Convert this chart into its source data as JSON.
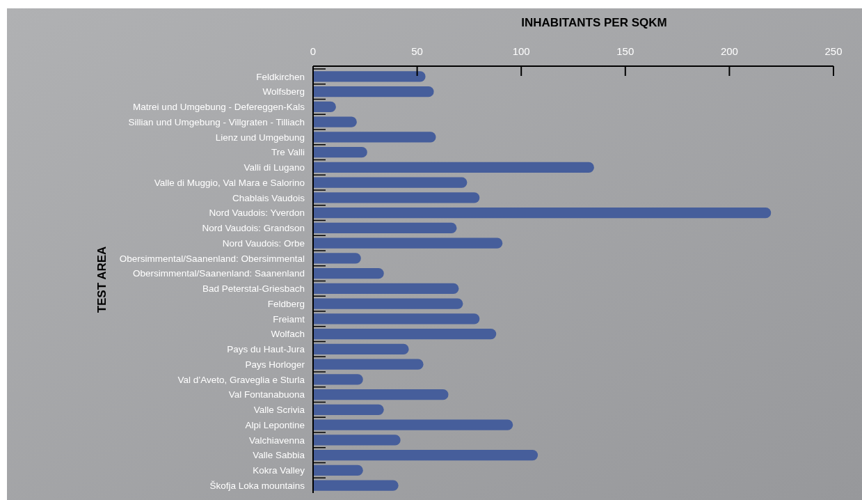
{
  "chart_data": {
    "type": "bar",
    "orientation": "horizontal",
    "xlabel": "INHABITANTS PER SQKM",
    "ylabel": "TEST AREA",
    "categories": [
      "Feldkirchen",
      "Wolfsberg",
      "Matrei und Umgebung - Defereggen-Kals",
      "Sillian und Umgebung - Villgraten - Tilliach",
      "Lienz und Umgebung",
      "Tre Valli",
      "Valli di Lugano",
      "Valle di Muggio, Val Mara e Salorino",
      "Chablais Vaudois",
      "Nord Vaudois: Yverdon",
      "Nord Vaudois: Grandson",
      "Nord Vaudois: Orbe",
      "Obersimmental/Saanenland: Obersimmental",
      "Obersimmental/Saanenland: Saanenland",
      "Bad Peterstal-Griesbach",
      "Feldberg",
      "Freiamt",
      "Wolfach",
      "Pays du Haut-Jura",
      "Pays Horloger",
      "Val d’Aveto, Graveglia e Sturla",
      "Val Fontanabuona",
      "Valle Scrivia",
      "Alpi Lepontine",
      "Valchiavenna",
      "Valle Sabbia",
      "Kokra Valley",
      "Škofja Loka mountains"
    ],
    "values": [
      54,
      58,
      11,
      21,
      59,
      26,
      135,
      74,
      80,
      220,
      69,
      91,
      23,
      34,
      70,
      72,
      80,
      88,
      46,
      53,
      24,
      65,
      34,
      96,
      42,
      108,
      24,
      41
    ],
    "color": "#465e9b",
    "xlim": [
      0,
      250
    ],
    "xticks": [
      0,
      50,
      100,
      150,
      200,
      250
    ],
    "grid": false
  }
}
